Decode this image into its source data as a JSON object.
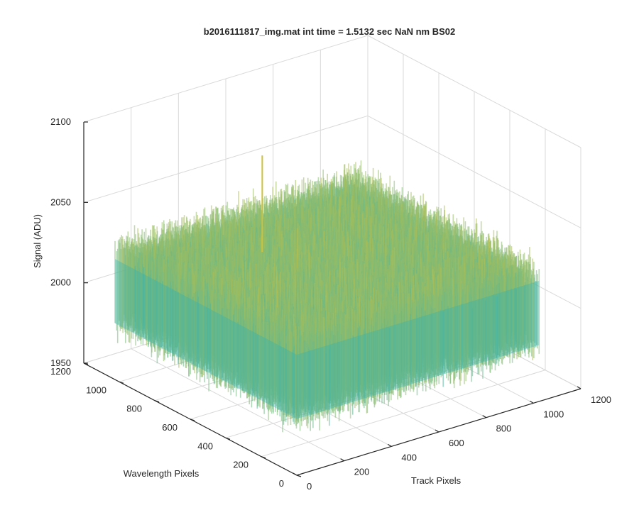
{
  "chart_data": {
    "type": "surface",
    "title": "b2016111817_img.mat int time = 1.5132 sec  NaN nm BS02",
    "xlabel": "Track Pixels",
    "ylabel": "Wavelength Pixels",
    "zlabel": "Signal (ADU)",
    "xlim": [
      0,
      1200
    ],
    "ylim": [
      0,
      1200
    ],
    "zlim": [
      1950,
      2100
    ],
    "xticks": [
      "0",
      "200",
      "400",
      "600",
      "800",
      "1000",
      "1200"
    ],
    "yticks": [
      "0",
      "200",
      "400",
      "600",
      "800",
      "1000",
      "1200"
    ],
    "zticks": [
      "1950",
      "2000",
      "2050",
      "2100"
    ],
    "grid": true,
    "colormap": "parula",
    "colors": {
      "low": "#0b74d9",
      "mid": "#2fb3b5",
      "high": "#cfc13a"
    },
    "surface_summary": {
      "x_extent": [
        0,
        1024
      ],
      "y_extent": [
        0,
        1024
      ],
      "typical_signal_range": [
        1975,
        2050
      ],
      "mean_signal": 2005,
      "peak_signal": 2085
    }
  }
}
